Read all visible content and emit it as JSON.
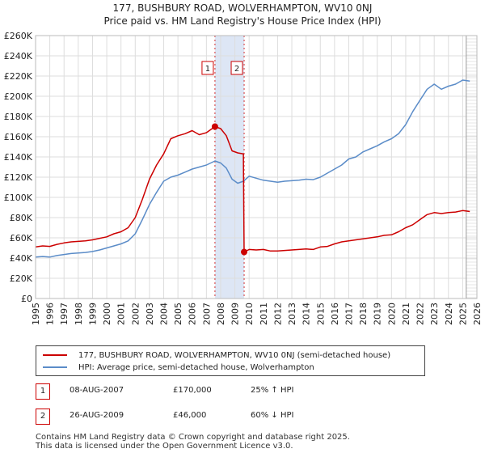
{
  "chart_data": {
    "type": "line",
    "title": "177, BUSHBURY ROAD, WOLVERHAMPTON, WV10 0NJ",
    "subtitle": "Price paid vs. HM Land Registry's House Price Index (HPI)",
    "xlabel": "",
    "ylabel": "",
    "xlim": [
      1995,
      2026
    ],
    "ylim": [
      0,
      260000
    ],
    "y_ticks": [
      0,
      20000,
      40000,
      60000,
      80000,
      100000,
      120000,
      140000,
      160000,
      180000,
      200000,
      220000,
      240000,
      260000
    ],
    "y_tick_labels": [
      "£0",
      "£20K",
      "£40K",
      "£60K",
      "£80K",
      "£100K",
      "£120K",
      "£140K",
      "£160K",
      "£180K",
      "£200K",
      "£220K",
      "£240K",
      "£260K"
    ],
    "x_ticks": [
      1995,
      1996,
      1997,
      1998,
      1999,
      2000,
      2001,
      2002,
      2003,
      2004,
      2005,
      2006,
      2007,
      2008,
      2009,
      2010,
      2011,
      2012,
      2013,
      2014,
      2015,
      2016,
      2017,
      2018,
      2019,
      2020,
      2021,
      2022,
      2023,
      2024,
      2025,
      2026
    ],
    "x_tick_labels": [
      "1995",
      "1996",
      "1997",
      "1998",
      "1999",
      "2000",
      "2001",
      "2002",
      "2003",
      "2004",
      "2005",
      "2006",
      "2007",
      "2008",
      "2009",
      "2010",
      "2011",
      "2012",
      "2013",
      "2014",
      "2015",
      "2016",
      "2017",
      "2018",
      "2019",
      "2020",
      "2021",
      "2022",
      "2023",
      "2024",
      "2025",
      "2026"
    ],
    "grid": true,
    "legend_position": "below",
    "shaded_span": [
      2007.6,
      2009.65
    ],
    "projection_start": 2025.25,
    "series": [
      {
        "name": "177, BUSHBURY ROAD, WOLVERHAMPTON, WV10 0NJ (semi-detached house)",
        "color": "#cc0000",
        "x": [
          1995.0,
          1995.5,
          1996.0,
          1996.5,
          1997.0,
          1997.5,
          1998.0,
          1998.5,
          1999.0,
          1999.5,
          2000.0,
          2000.5,
          2001.0,
          2001.5,
          2002.0,
          2002.5,
          2003.0,
          2003.5,
          2004.0,
          2004.5,
          2005.0,
          2005.5,
          2006.0,
          2006.5,
          2007.0,
          2007.6,
          2008.0,
          2008.4,
          2008.8,
          2009.2,
          2009.6,
          2009.65,
          2010.0,
          2010.5,
          2011.0,
          2011.5,
          2012.0,
          2012.5,
          2013.0,
          2013.5,
          2014.0,
          2014.5,
          2015.0,
          2015.5,
          2016.0,
          2016.5,
          2017.0,
          2017.5,
          2018.0,
          2018.5,
          2019.0,
          2019.5,
          2020.0,
          2020.5,
          2021.0,
          2021.5,
          2022.0,
          2022.5,
          2023.0,
          2023.5,
          2024.0,
          2024.5,
          2025.0,
          2025.5
        ],
        "values": [
          51000,
          52000,
          51500,
          53500,
          55000,
          56000,
          56500,
          57000,
          58000,
          59500,
          61000,
          64000,
          66000,
          70000,
          80000,
          98000,
          118000,
          132000,
          143000,
          158000,
          161000,
          163000,
          166000,
          162000,
          164000,
          170000,
          168000,
          161000,
          146000,
          144000,
          143000,
          46000,
          48500,
          48000,
          48500,
          47000,
          47000,
          47500,
          48000,
          48500,
          49000,
          48500,
          51000,
          51500,
          54000,
          56000,
          57000,
          58000,
          59000,
          60000,
          61000,
          62500,
          63000,
          66000,
          70000,
          73000,
          78000,
          83000,
          85000,
          84000,
          85000,
          85500,
          87000,
          86000
        ]
      },
      {
        "name": "HPI: Average price, semi-detached house, Wolverhampton",
        "color": "#5b8cc8",
        "x": [
          1995.0,
          1995.5,
          1996.0,
          1996.5,
          1997.0,
          1997.5,
          1998.0,
          1998.5,
          1999.0,
          1999.5,
          2000.0,
          2000.5,
          2001.0,
          2001.5,
          2002.0,
          2002.5,
          2003.0,
          2003.5,
          2004.0,
          2004.5,
          2005.0,
          2005.5,
          2006.0,
          2006.5,
          2007.0,
          2007.6,
          2008.0,
          2008.4,
          2008.8,
          2009.2,
          2009.6,
          2010.0,
          2010.5,
          2011.0,
          2011.5,
          2012.0,
          2012.5,
          2013.0,
          2013.5,
          2014.0,
          2014.5,
          2015.0,
          2015.5,
          2016.0,
          2016.5,
          2017.0,
          2017.5,
          2018.0,
          2018.5,
          2019.0,
          2019.5,
          2020.0,
          2020.5,
          2021.0,
          2021.5,
          2022.0,
          2022.5,
          2023.0,
          2023.5,
          2024.0,
          2024.5,
          2025.0,
          2025.5
        ],
        "values": [
          41000,
          41500,
          41000,
          42500,
          43500,
          44500,
          45000,
          45500,
          46500,
          48000,
          50000,
          52000,
          54000,
          57000,
          64000,
          78000,
          93000,
          105000,
          116000,
          120000,
          122000,
          125000,
          128000,
          130000,
          132000,
          136000,
          134000,
          129000,
          118000,
          114000,
          116000,
          121000,
          119000,
          117000,
          116000,
          115000,
          116000,
          116500,
          117000,
          118000,
          117500,
          120000,
          124000,
          128000,
          132000,
          138000,
          140000,
          145000,
          148000,
          151000,
          155000,
          158000,
          163000,
          172000,
          185000,
          196000,
          207000,
          212000,
          207000,
          210000,
          212000,
          216000,
          215000
        ]
      }
    ],
    "sales": [
      {
        "label": "1",
        "x": 2007.6,
        "value": 170000
      },
      {
        "label": "2",
        "x": 2009.65,
        "value": 46000
      }
    ]
  },
  "legend": {
    "red_label": "177, BUSHBURY ROAD, WOLVERHAMPTON, WV10 0NJ (semi-detached house)",
    "blue_label": "HPI: Average price, semi-detached house, Wolverhampton"
  },
  "sales_table": [
    {
      "num": "1",
      "date": "08-AUG-2007",
      "price": "£170,000",
      "hpi": "25% ↑ HPI"
    },
    {
      "num": "2",
      "date": "26-AUG-2009",
      "price": "£46,000",
      "hpi": "60% ↓ HPI"
    }
  ],
  "footer": {
    "line1": "Contains HM Land Registry data © Crown copyright and database right 2025.",
    "line2": "This data is licensed under the Open Government Licence v3.0."
  },
  "colors": {
    "property": "#cc0000",
    "hpi": "#5b8cc8",
    "shade": "#dde6f5",
    "grid": "#dddddd"
  }
}
